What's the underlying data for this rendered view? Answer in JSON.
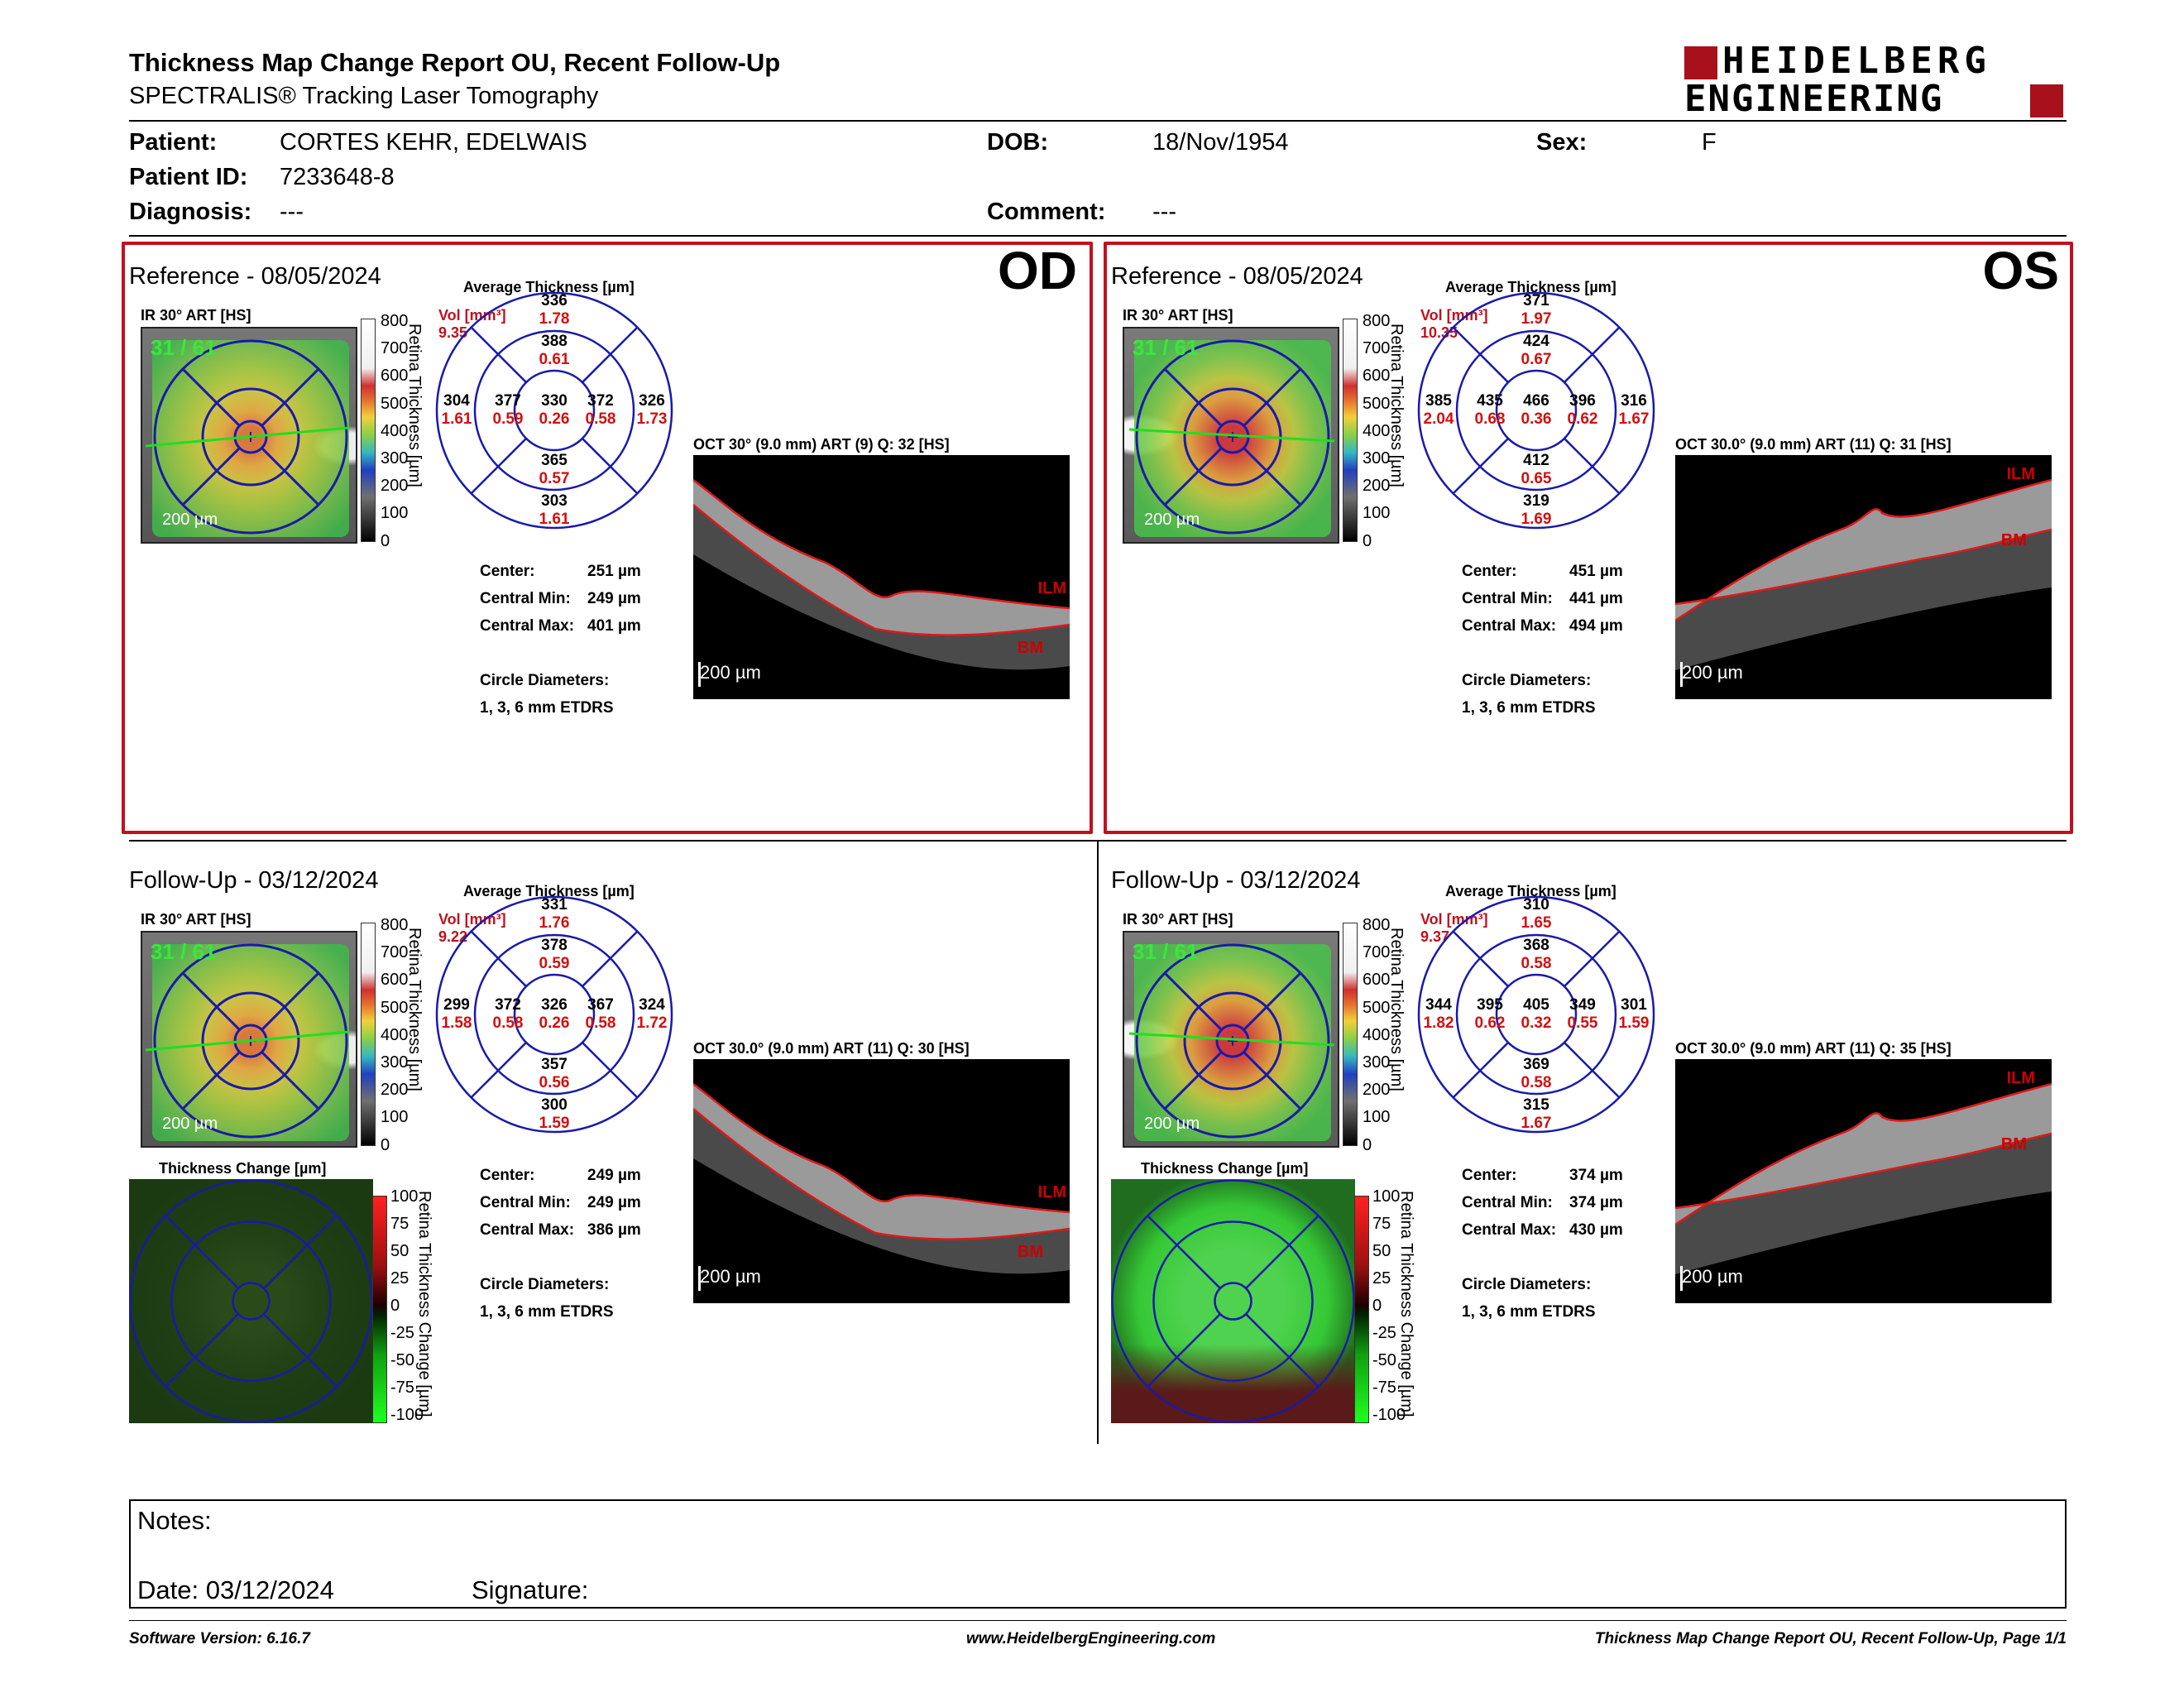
{
  "header": {
    "title": "Thickness Map Change Report OU, Recent Follow-Up",
    "subtitle": "SPECTRALIS® Tracking Laser Tomography",
    "logo_line1": "HEIDELBERG",
    "logo_line2": "ENGINEERING"
  },
  "patient": {
    "patient_label": "Patient:",
    "patient_value": "CORTES KEHR, EDELWAIS",
    "id_label": "Patient ID:",
    "id_value": "7233648-8",
    "diagnosis_label": "Diagnosis:",
    "diagnosis_value": "---",
    "dob_label": "DOB:",
    "dob_value": "18/Nov/1954",
    "comment_label": "Comment:",
    "comment_value": "---",
    "sex_label": "Sex:",
    "sex_value": "F"
  },
  "common": {
    "avg_thickness": "Average Thickness [µm]",
    "ir_label": "IR 30° ART [HS]",
    "vol_label": "Vol [mm³]",
    "scale_200": "200 µm",
    "center_label": "Center:",
    "cmin_label": "Central Min:",
    "cmax_label": "Central Max:",
    "circle_diam_label": "Circle Diameters:",
    "circle_diam_value": "1, 3, 6 mm ETDRS",
    "fraction": "31 / 61",
    "thickness_change": "Thickness Change [µm]",
    "cb_title": "Retina Thickness [µm]",
    "cb_change_title": "Retina Thickness Change [µm]",
    "cb_ticks": [
      "800",
      "700",
      "600",
      "500",
      "400",
      "300",
      "200",
      "100",
      "0"
    ],
    "cb_change_ticks": [
      "100",
      "75",
      "50",
      "25",
      "0",
      "-25",
      "-50",
      "-75",
      "-100"
    ],
    "ilm": "ILM",
    "bm": "BM"
  },
  "panels": {
    "od_ref": {
      "eye": "OD",
      "title": "Reference - 08/05/2024",
      "oct_label": "OCT 30° (9.0 mm) ART (9) Q: 32 [HS]",
      "vol_total": "9.35",
      "sectors": {
        "c": {
          "t": "330",
          "v": "0.26"
        },
        "it": {
          "t": "388",
          "v": "0.61"
        },
        "ii": {
          "t": "365",
          "v": "0.57"
        },
        "in": {
          "t": "377",
          "v": "0.59"
        },
        "itm": {
          "t": "372",
          "v": "0.58"
        },
        "ot": {
          "t": "336",
          "v": "1.78"
        },
        "oi": {
          "t": "303",
          "v": "1.61"
        },
        "on": {
          "t": "304",
          "v": "1.61"
        },
        "otm": {
          "t": "326",
          "v": "1.73"
        }
      },
      "center": "251 µm",
      "cmin": "249 µm",
      "cmax": "401 µm"
    },
    "os_ref": {
      "eye": "OS",
      "title": "Reference - 08/05/2024",
      "oct_label": "OCT 30.0° (9.0 mm) ART (11) Q: 31 [HS]",
      "vol_total": "10.35",
      "sectors": {
        "c": {
          "t": "466",
          "v": "0.36"
        },
        "it": {
          "t": "424",
          "v": "0.67"
        },
        "ii": {
          "t": "412",
          "v": "0.65"
        },
        "in": {
          "t": "435",
          "v": "0.68"
        },
        "itm": {
          "t": "396",
          "v": "0.62"
        },
        "ot": {
          "t": "371",
          "v": "1.97"
        },
        "oi": {
          "t": "319",
          "v": "1.69"
        },
        "on": {
          "t": "385",
          "v": "2.04"
        },
        "otm": {
          "t": "316",
          "v": "1.67"
        }
      },
      "center": "451 µm",
      "cmin": "441 µm",
      "cmax": "494 µm"
    },
    "od_fu": {
      "title": "Follow-Up - 03/12/2024",
      "oct_label": "OCT 30.0° (9.0 mm) ART (11) Q: 30 [HS]",
      "vol_total": "9.22",
      "sectors": {
        "c": {
          "t": "326",
          "v": "0.26"
        },
        "it": {
          "t": "378",
          "v": "0.59"
        },
        "ii": {
          "t": "357",
          "v": "0.56"
        },
        "in": {
          "t": "372",
          "v": "0.58"
        },
        "itm": {
          "t": "367",
          "v": "0.58"
        },
        "ot": {
          "t": "331",
          "v": "1.76"
        },
        "oi": {
          "t": "300",
          "v": "1.59"
        },
        "on": {
          "t": "299",
          "v": "1.58"
        },
        "otm": {
          "t": "324",
          "v": "1.72"
        }
      },
      "center": "249 µm",
      "cmin": "249 µm",
      "cmax": "386 µm"
    },
    "os_fu": {
      "title": "Follow-Up - 03/12/2024",
      "oct_label": "OCT 30.0° (9.0 mm) ART (11) Q: 35 [HS]",
      "vol_total": "9.37",
      "sectors": {
        "c": {
          "t": "405",
          "v": "0.32"
        },
        "it": {
          "t": "368",
          "v": "0.58"
        },
        "ii": {
          "t": "369",
          "v": "0.58"
        },
        "in": {
          "t": "395",
          "v": "0.62"
        },
        "itm": {
          "t": "349",
          "v": "0.55"
        },
        "ot": {
          "t": "310",
          "v": "1.65"
        },
        "oi": {
          "t": "315",
          "v": "1.67"
        },
        "on": {
          "t": "344",
          "v": "1.82"
        },
        "otm": {
          "t": "301",
          "v": "1.59"
        }
      },
      "center": "374 µm",
      "cmin": "374 µm",
      "cmax": "430 µm"
    }
  },
  "notes": {
    "notes_label": "Notes:",
    "date_label": "Date: 03/12/2024",
    "signature_label": "Signature:"
  },
  "footer": {
    "version": "Software Version: 6.16.7",
    "url": "www.HeidelbergEngineering.com",
    "page": "Thickness Map Change Report OU, Recent Follow-Up, Page 1/1"
  },
  "colors": {
    "accent_red": "#c0101e",
    "sector_blue": "#1a1aa8",
    "volume_red": "#d01010"
  }
}
